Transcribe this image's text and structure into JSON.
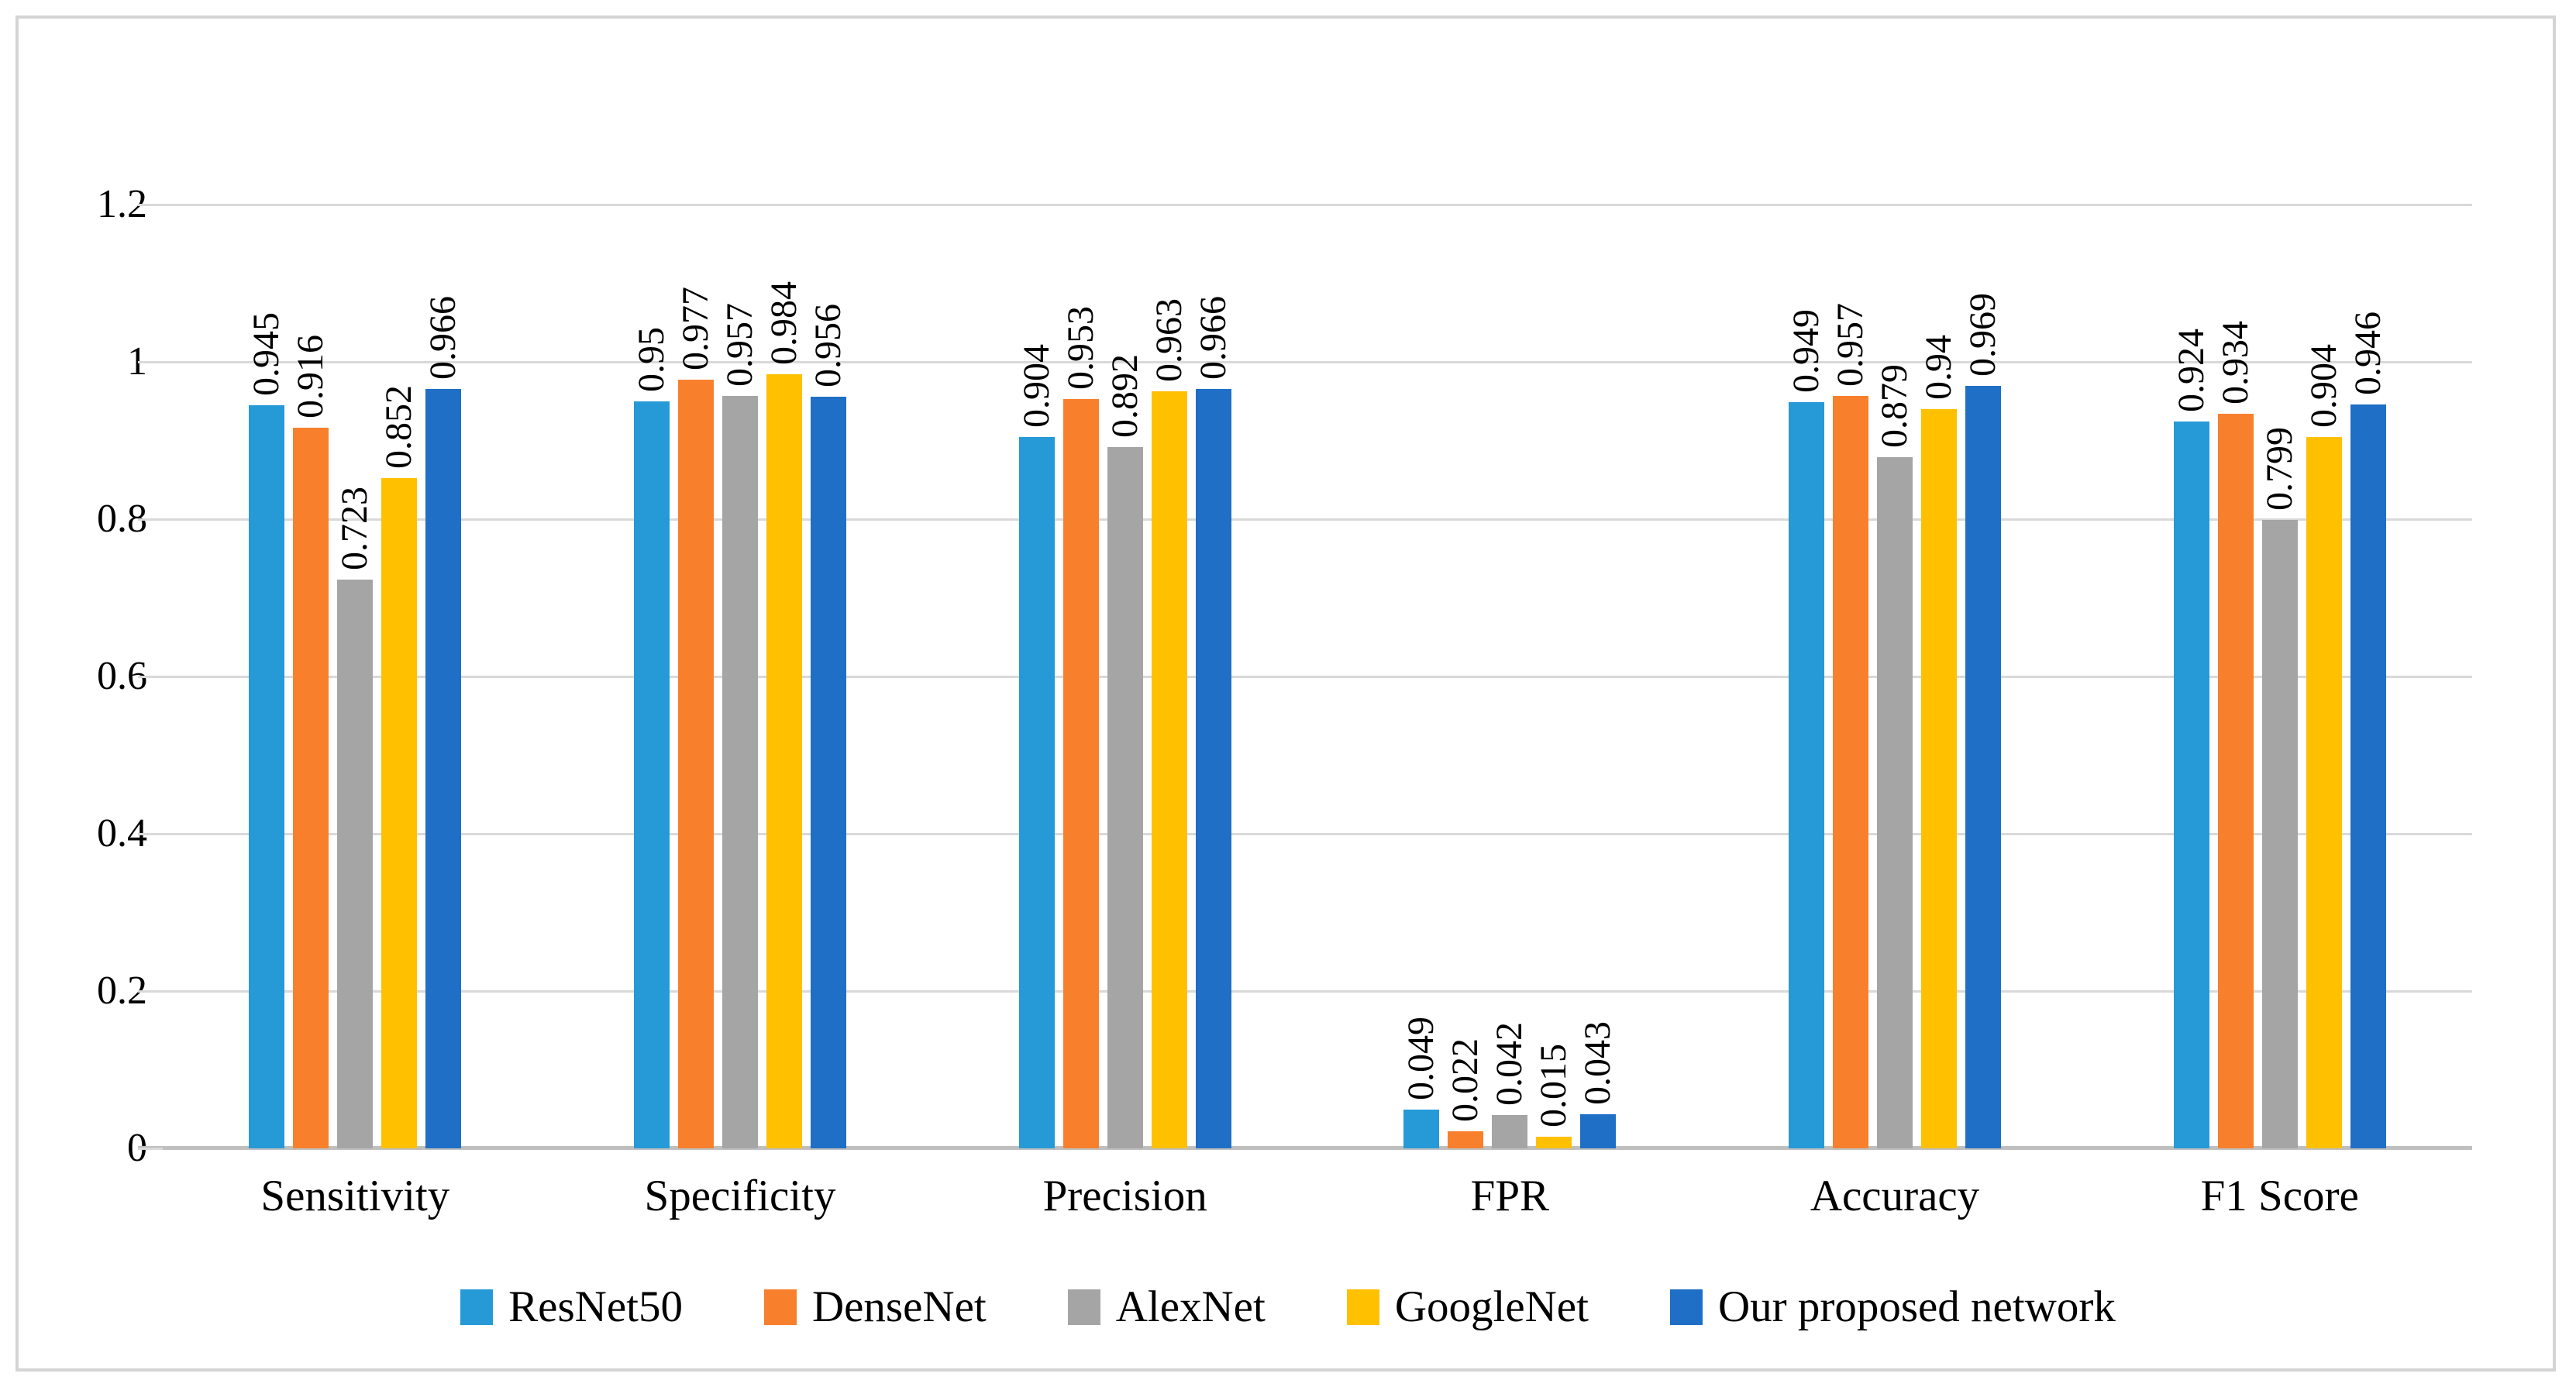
{
  "figure": {
    "background": "#FFFFFF",
    "frame_color": "#D4D4D4"
  },
  "chart_data": {
    "type": "bar",
    "title": "",
    "xlabel": "",
    "ylabel": "",
    "categories": [
      "Sensitivity",
      "Specificity",
      "Precision",
      "FPR",
      "Accuracy",
      "F1 Score"
    ],
    "series": [
      {
        "name": "ResNet50",
        "color": "#259AD7",
        "values": [
          0.945,
          0.95,
          0.904,
          0.049,
          0.949,
          0.924
        ]
      },
      {
        "name": "DenseNet",
        "color": "#F8802D",
        "values": [
          0.916,
          0.977,
          0.953,
          0.022,
          0.957,
          0.934
        ]
      },
      {
        "name": "AlexNet",
        "color": "#A5A5A5",
        "values": [
          0.723,
          0.957,
          0.892,
          0.042,
          0.879,
          0.799
        ]
      },
      {
        "name": "GoogleNet",
        "color": "#FFC000",
        "values": [
          0.852,
          0.984,
          0.963,
          0.015,
          0.94,
          0.904
        ]
      },
      {
        "name": "Our proposed network",
        "color": "#1E6FC5",
        "values": [
          0.966,
          0.956,
          0.966,
          0.043,
          0.969,
          0.946
        ]
      }
    ],
    "y_axis": {
      "max": 1.2,
      "ticks": [
        {
          "v": 1.2,
          "label": "1.2"
        },
        {
          "v": 1.0,
          "label": "1"
        },
        {
          "v": 0.8,
          "label": "0.8"
        },
        {
          "v": 0.6,
          "label": "0.6"
        },
        {
          "v": 0.4,
          "label": "0.4"
        },
        {
          "v": 0.2,
          "label": "0.2"
        },
        {
          "v": 0.0,
          "label": "0"
        }
      ]
    },
    "ylim": [
      0,
      1.2
    ],
    "grid": true,
    "gridline_color": "#D9D9D9",
    "axis_line_color": "#BFBFBF",
    "data_labels_rotation": -90,
    "legend_position": "bottom"
  }
}
